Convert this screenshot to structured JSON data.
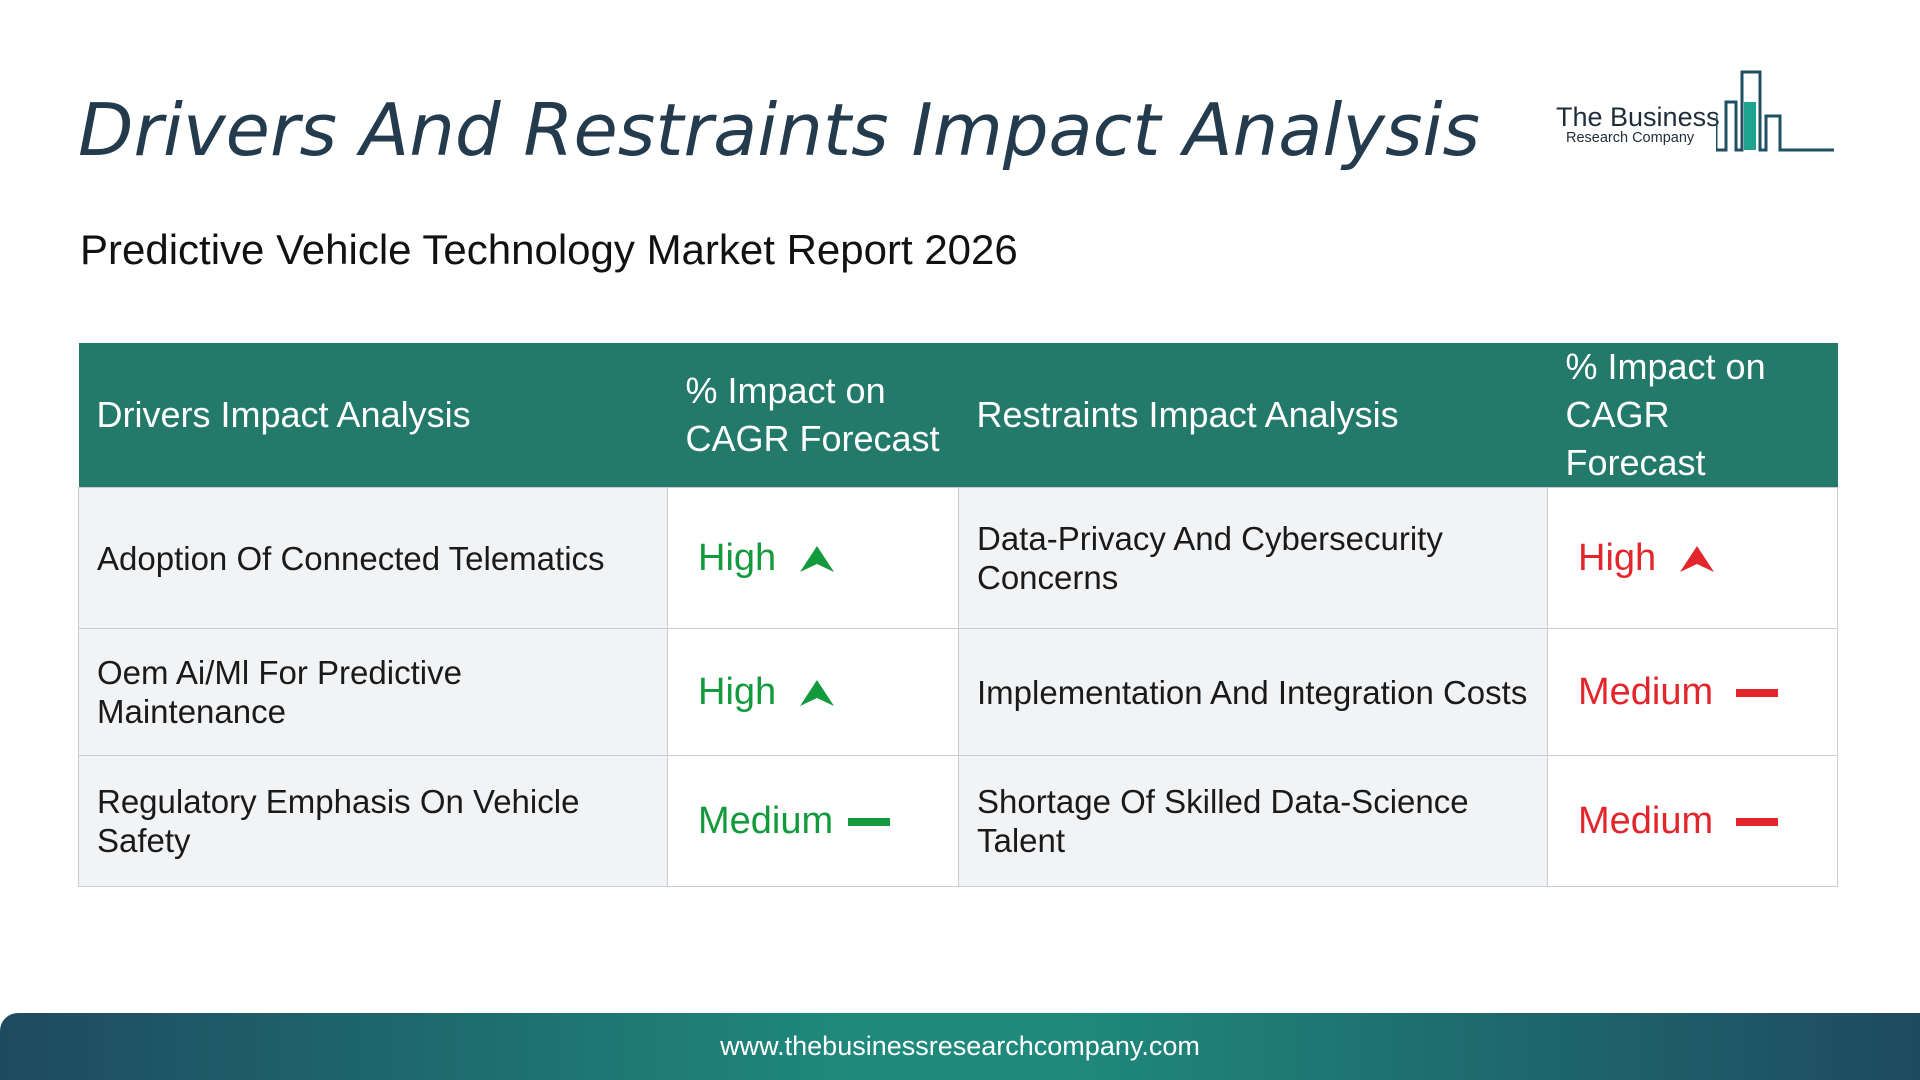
{
  "header": {
    "title": "Drivers And Restraints Impact Analysis",
    "subtitle": "Predictive Vehicle Technology Market Report 2026"
  },
  "logo": {
    "name": "The Business",
    "tagline": "Research Company"
  },
  "table": {
    "columns": [
      "Drivers Impact Analysis",
      "% Impact on CAGR Forecast",
      "Restraints Impact Analysis",
      "% Impact on CAGR Forecast"
    ],
    "rows": [
      {
        "driver": "Adoption Of Connected Telematics",
        "driver_impact": "High",
        "driver_indicator": "up-arrow-icon",
        "restraint": "Data-Privacy And Cybersecurity Concerns",
        "restraint_impact": "High",
        "restraint_indicator": "up-arrow-icon"
      },
      {
        "driver": "Oem Ai/Ml For Predictive Maintenance",
        "driver_impact": "High",
        "driver_indicator": "up-arrow-icon",
        "restraint": "Implementation And Integration Costs",
        "restraint_impact": "Medium",
        "restraint_indicator": "dash-icon"
      },
      {
        "driver": "Regulatory Emphasis On Vehicle Safety",
        "driver_impact": "Medium",
        "driver_indicator": "dash-icon",
        "restraint": "Shortage Of Skilled Data-Science Talent",
        "restraint_impact": "Medium",
        "restraint_indicator": "dash-icon"
      }
    ]
  },
  "colors": {
    "header_bg": "#247a6a",
    "driver_rating": "#139a3c",
    "restraint_rating": "#e3262c",
    "title": "#243b4e"
  },
  "footer": {
    "url": "www.thebusinessresearchcompany.com"
  }
}
